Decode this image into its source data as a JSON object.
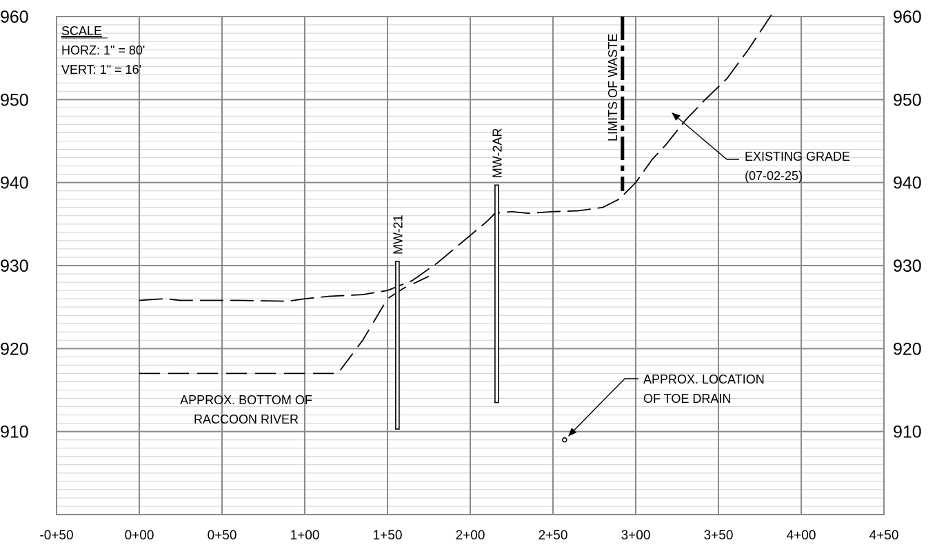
{
  "chart_data": {
    "type": "line",
    "title": "",
    "xlabel": "",
    "ylabel": "",
    "xlim": [
      -50,
      450
    ],
    "ylim": [
      900,
      960
    ],
    "x_ticks": [
      {
        "value": -50,
        "label": "-0+50"
      },
      {
        "value": 0,
        "label": "0+00"
      },
      {
        "value": 50,
        "label": "0+50"
      },
      {
        "value": 100,
        "label": "1+00"
      },
      {
        "value": 150,
        "label": "1+50"
      },
      {
        "value": 200,
        "label": "2+00"
      },
      {
        "value": 250,
        "label": "2+50"
      },
      {
        "value": 300,
        "label": "3+00"
      },
      {
        "value": 350,
        "label": "3+50"
      },
      {
        "value": 400,
        "label": "4+00"
      },
      {
        "value": 450,
        "label": "4+50"
      }
    ],
    "y_ticks": [
      {
        "value": 910,
        "label": "910"
      },
      {
        "value": 920,
        "label": "920"
      },
      {
        "value": 930,
        "label": "930"
      },
      {
        "value": 940,
        "label": "940"
      },
      {
        "value": 950,
        "label": "950"
      },
      {
        "value": 960,
        "label": "960"
      }
    ],
    "grid": true,
    "series": [
      {
        "key": "existing_grade",
        "style": "long-dash",
        "points": [
          [
            0,
            925.8
          ],
          [
            15,
            926.0
          ],
          [
            25,
            925.8
          ],
          [
            60,
            925.8
          ],
          [
            90,
            925.7
          ],
          [
            100,
            926.0
          ],
          [
            115,
            926.3
          ],
          [
            135,
            926.5
          ],
          [
            150,
            927.0
          ],
          [
            165,
            928.2
          ],
          [
            180,
            930.3
          ],
          [
            195,
            932.8
          ],
          [
            210,
            935.3
          ],
          [
            215,
            936.3
          ],
          [
            225,
            936.5
          ],
          [
            235,
            936.3
          ],
          [
            250,
            936.5
          ],
          [
            265,
            936.6
          ],
          [
            280,
            937.0
          ],
          [
            290,
            938.0
          ],
          [
            300,
            940.0
          ],
          [
            310,
            942.8
          ],
          [
            318,
            944.5
          ],
          [
            330,
            947.5
          ],
          [
            342,
            950.0
          ],
          [
            355,
            952.5
          ],
          [
            368,
            956.0
          ],
          [
            382,
            960.2
          ]
        ]
      },
      {
        "key": "river_bottom",
        "style": "long-dash",
        "points": [
          [
            0,
            917.0
          ],
          [
            120,
            917.0
          ],
          [
            135,
            921.0
          ],
          [
            150,
            926.0
          ],
          [
            160,
            927.3
          ],
          [
            175,
            928.7
          ]
        ]
      }
    ],
    "wells": [
      {
        "name": "MW-21",
        "x": 156,
        "top": 930.5,
        "bottom": 910.3
      },
      {
        "name": "MW-2AR",
        "x": 216,
        "top": 939.7,
        "bottom": 913.5
      }
    ],
    "limits_of_waste": {
      "label": "LIMITS OF WASTE",
      "x": 292,
      "top": 960,
      "bottom": 939
    },
    "toe_drain": {
      "x": 257,
      "y": 909.0
    },
    "annotations": {
      "existing_grade": [
        "EXISTING GRADE",
        "(07-02-25)"
      ],
      "toe_drain": [
        "APPROX. LOCATION",
        "OF TOE DRAIN"
      ],
      "river": [
        "APPROX. BOTTOM OF",
        "RACCOON RIVER"
      ]
    },
    "scale": {
      "heading": "SCALE",
      "horz": "HORZ: 1\" = 80'",
      "vert": "VERT: 1\" = 16'"
    }
  }
}
